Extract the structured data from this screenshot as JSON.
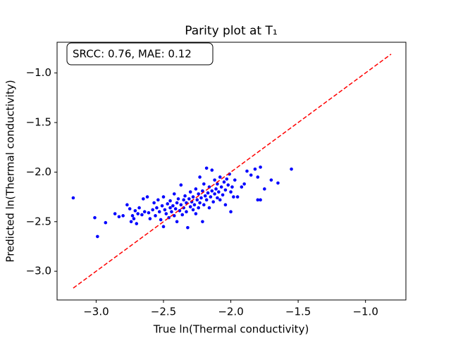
{
  "chart_data": {
    "type": "scatter",
    "title": "Parity plot at T₁",
    "x_label": "True ln(Thermal conductivity)",
    "y_label": "Predicted ln(Thermal conductivity)",
    "annotation": "SRCC: 0.76, MAE:  0.12",
    "xlim": [
      -3.29,
      -0.7
    ],
    "ylim": [
      -3.29,
      -0.69
    ],
    "xticks": [
      {
        "value": -3,
        "label": "−3.0"
      },
      {
        "value": -2.5,
        "label": "−2.5"
      },
      {
        "value": -2,
        "label": "−2.0"
      },
      {
        "value": -1.5,
        "label": "−1.5"
      },
      {
        "value": -1,
        "label": "−1.0"
      }
    ],
    "yticks": [
      {
        "value": -3,
        "label": "−3.0"
      },
      {
        "value": -2.5,
        "label": "−2.5"
      },
      {
        "value": -2,
        "label": "−2.0"
      },
      {
        "value": -1.5,
        "label": "−1.5"
      },
      {
        "value": -1,
        "label": "−1.0"
      }
    ],
    "grid": false,
    "color": "#0000ff",
    "x": [
      -3.17,
      -3.01,
      -2.99,
      -2.93,
      -2.83,
      -2.8,
      -2.77,
      -2.75,
      -2.73,
      -2.72,
      -2.71,
      -2.7,
      -2.69,
      -2.68,
      -2.66,
      -2.64,
      -2.62,
      -2.61,
      -2.6,
      -2.58,
      -2.57,
      -2.56,
      -2.55,
      -2.54,
      -2.53,
      -2.52,
      -2.51,
      -2.5,
      -2.5,
      -2.49,
      -2.48,
      -2.47,
      -2.46,
      -2.45,
      -2.45,
      -2.44,
      -2.43,
      -2.42,
      -2.42,
      -2.41,
      -2.4,
      -2.4,
      -2.39,
      -2.38,
      -2.37,
      -2.37,
      -2.36,
      -2.35,
      -2.35,
      -2.34,
      -2.33,
      -2.33,
      -2.32,
      -2.31,
      -2.3,
      -2.3,
      -2.29,
      -2.28,
      -2.28,
      -2.27,
      -2.26,
      -2.26,
      -2.25,
      -2.24,
      -2.24,
      -2.23,
      -2.23,
      -2.22,
      -2.21,
      -2.21,
      -2.2,
      -2.2,
      -2.19,
      -2.18,
      -2.18,
      -2.17,
      -2.16,
      -2.16,
      -2.15,
      -2.14,
      -2.14,
      -2.13,
      -2.12,
      -2.12,
      -2.11,
      -2.1,
      -2.1,
      -2.09,
      -2.08,
      -2.08,
      -2.07,
      -2.06,
      -2.05,
      -2.04,
      -2.04,
      -2.03,
      -2.02,
      -2.01,
      -2.0,
      -2.0,
      -1.99,
      -1.98,
      -1.97,
      -1.95,
      -1.92,
      -1.9,
      -1.88,
      -1.85,
      -1.82,
      -1.8,
      -1.8,
      -1.78,
      -1.78,
      -1.75,
      -1.7,
      -1.65,
      -1.55,
      -2.86,
      -2.74,
      -2.65
    ],
    "y": [
      -2.26,
      -2.46,
      -2.65,
      -2.51,
      -2.45,
      -2.44,
      -2.33,
      -2.37,
      -2.44,
      -2.47,
      -2.39,
      -2.52,
      -2.42,
      -2.36,
      -2.43,
      -2.4,
      -2.25,
      -2.41,
      -2.47,
      -2.38,
      -2.31,
      -2.44,
      -2.36,
      -2.28,
      -2.4,
      -2.48,
      -2.34,
      -2.55,
      -2.25,
      -2.38,
      -2.42,
      -2.32,
      -2.46,
      -2.36,
      -2.29,
      -2.4,
      -2.34,
      -2.22,
      -2.44,
      -2.37,
      -2.31,
      -2.5,
      -2.27,
      -2.39,
      -2.33,
      -2.13,
      -2.43,
      -2.28,
      -2.36,
      -2.24,
      -2.31,
      -2.4,
      -2.56,
      -2.27,
      -2.35,
      -2.2,
      -2.3,
      -2.38,
      -2.25,
      -2.33,
      -2.17,
      -2.42,
      -2.28,
      -2.36,
      -2.22,
      -2.05,
      -2.31,
      -2.26,
      -2.5,
      -2.19,
      -2.33,
      -2.12,
      -2.24,
      -2.28,
      -1.96,
      -2.21,
      -2.36,
      -2.15,
      -2.25,
      -2.19,
      -1.98,
      -2.3,
      -2.22,
      -2.08,
      -2.17,
      -2.26,
      -2.12,
      -2.2,
      -2.05,
      -2.28,
      -2.15,
      -2.23,
      -2.1,
      -2.18,
      -2.33,
      -2.07,
      -2.13,
      -2.02,
      -2.2,
      -2.4,
      -2.15,
      -2.25,
      -2.08,
      -2.25,
      -2.15,
      -2.12,
      -1.99,
      -2.03,
      -1.97,
      -2.05,
      -2.28,
      -1.95,
      -2.28,
      -2.17,
      -2.08,
      -2.11,
      -1.97,
      -2.42,
      -2.5,
      -2.27
    ],
    "reference_line": {
      "x": [
        -3.17,
        -0.81
      ],
      "y": [
        -3.17,
        -0.81
      ],
      "color": "#ff0000"
    }
  }
}
